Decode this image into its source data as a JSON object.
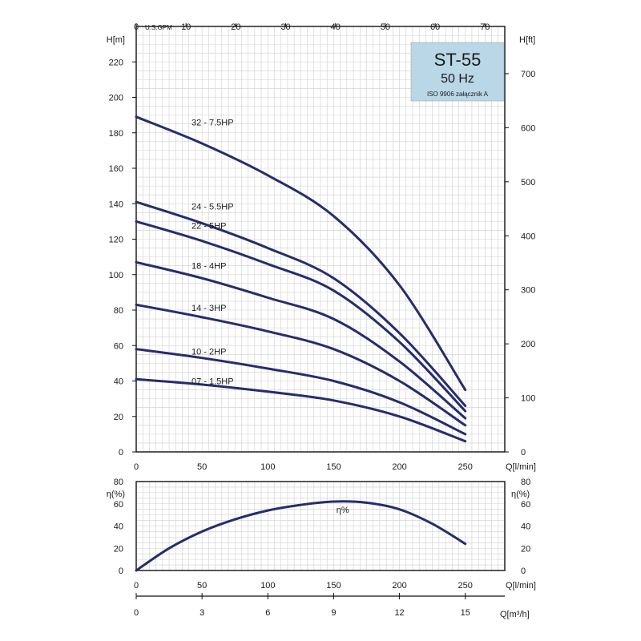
{
  "chart_data": [
    {
      "type": "line",
      "name": "Head curves",
      "title": "ST-55",
      "subtitle": "50 Hz",
      "note": "ISO 9906 załącznik A",
      "ylabel_left": "H[m]",
      "ylabel_right": "H[ft]",
      "xlabel": "Q[l/min]",
      "top_axis_label": "U.S.GPM",
      "x_ticks": [
        0,
        50,
        100,
        150,
        200,
        250
      ],
      "y_ticks": [
        0,
        20,
        40,
        60,
        80,
        100,
        120,
        140,
        160,
        180,
        200,
        220
      ],
      "ft_ticks": [
        0,
        100,
        200,
        300,
        400,
        500,
        600,
        700
      ],
      "gpm_ticks": [
        0,
        10,
        20,
        30,
        40,
        50,
        60,
        70
      ],
      "xlim": [
        0,
        280
      ],
      "ylim": [
        0,
        240
      ],
      "series": [
        {
          "name": "32 - 7.5HP",
          "x": [
            0,
            50,
            100,
            150,
            200,
            250
          ],
          "y": [
            189,
            174,
            156,
            133,
            94,
            35
          ]
        },
        {
          "name": "24 - 5.5HP",
          "x": [
            0,
            50,
            100,
            150,
            200,
            250
          ],
          "y": [
            141,
            129,
            115,
            98,
            67,
            26
          ]
        },
        {
          "name": "22 - 5HP",
          "x": [
            0,
            50,
            100,
            150,
            200,
            250
          ],
          "y": [
            130,
            119,
            106,
            91,
            62,
            23
          ]
        },
        {
          "name": "18 - 4HP",
          "x": [
            0,
            50,
            100,
            150,
            200,
            250
          ],
          "y": [
            107,
            98,
            87,
            75,
            51,
            19
          ]
        },
        {
          "name": "14 - 3HP",
          "x": [
            0,
            50,
            100,
            150,
            200,
            250
          ],
          "y": [
            83,
            76,
            68,
            58,
            40,
            15
          ]
        },
        {
          "name": "10 - 2HP",
          "x": [
            0,
            50,
            100,
            150,
            200,
            250
          ],
          "y": [
            58,
            53,
            47,
            40,
            28,
            10
          ]
        },
        {
          "name": "07 - 1.5HP",
          "x": [
            0,
            50,
            100,
            150,
            200,
            250
          ],
          "y": [
            41,
            38,
            34,
            29,
            20,
            6
          ]
        }
      ]
    },
    {
      "type": "line",
      "name": "Efficiency",
      "ylabel_left": "η(%)",
      "ylabel_right": "η(%)",
      "xlabel": "Q[l/min]",
      "bottom_axis_label": "Q[m³/h]",
      "x_ticks": [
        0,
        50,
        100,
        150,
        200,
        250
      ],
      "y_ticks": [
        0,
        20,
        40,
        60,
        80
      ],
      "m3h_ticks": [
        0,
        3,
        6,
        9,
        12,
        15
      ],
      "xlim": [
        0,
        280
      ],
      "ylim": [
        0,
        80
      ],
      "series": [
        {
          "name": "η%",
          "x": [
            0,
            25,
            50,
            75,
            100,
            125,
            150,
            175,
            200,
            225,
            250
          ],
          "y": [
            0,
            20,
            35,
            46,
            54,
            59,
            62,
            61,
            55,
            42,
            24
          ]
        }
      ]
    }
  ]
}
